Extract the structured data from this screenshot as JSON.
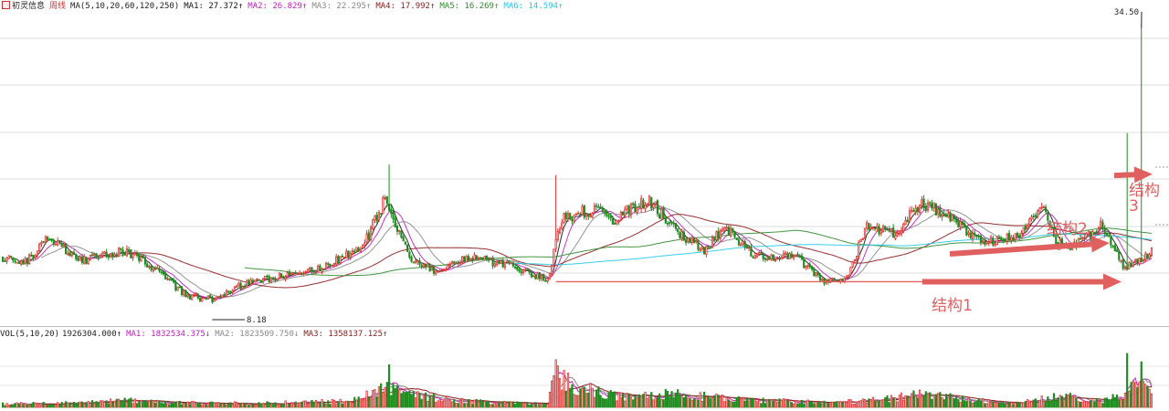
{
  "header": {
    "stock_name": "初灵信息",
    "period": "周线",
    "ma_label": "MA(5,10,20,60,120,250)",
    "ma_values": [
      {
        "label": "MA1:",
        "value": "27.372↑",
        "color": "#111111"
      },
      {
        "label": "MA2:",
        "value": "26.829↑",
        "color": "#c020c0"
      },
      {
        "label": "MA3:",
        "value": "22.295↑",
        "color": "#888888"
      },
      {
        "label": "MA4:",
        "value": "17.992↑",
        "color": "#8b1a1a"
      },
      {
        "label": "MA5:",
        "value": "16.269↑",
        "color": "#2e8b2e"
      },
      {
        "label": "MA6:",
        "value": "14.594↑",
        "color": "#22c8e8"
      }
    ]
  },
  "volume_header": {
    "label": "VOL(5,10,20)",
    "value": "1926304.000↑",
    "ma_values": [
      {
        "label": "MA1:",
        "value": "1832534.375↓",
        "color": "#c020c0"
      },
      {
        "label": "MA2:",
        "value": "1823509.750↓",
        "color": "#888888"
      },
      {
        "label": "MA3:",
        "value": "1358137.125↑",
        "color": "#8b1a1a"
      }
    ]
  },
  "annotations": {
    "structure1": "结构1",
    "structure2": "结构2",
    "structure3_line1": "结构",
    "structure3_line2": "3"
  },
  "chart_data": {
    "type": "candlestick",
    "title": "初灵信息 周线",
    "high_label": "34.50",
    "low_label": "8.18",
    "price_range": [
      6.5,
      36
    ],
    "volume_range": [
      0,
      2700000
    ],
    "colors": {
      "up": "#e03030",
      "down": "#1e8c1e",
      "arrow": "#e06060"
    },
    "price_path": [
      [
        0,
        12.6
      ],
      [
        10,
        11.9
      ],
      [
        22,
        14.5
      ],
      [
        40,
        12.3
      ],
      [
        60,
        13.3
      ],
      [
        75,
        11.5
      ],
      [
        90,
        9.0
      ],
      [
        103,
        8.6
      ],
      [
        115,
        9.8
      ],
      [
        140,
        11.0
      ],
      [
        160,
        11.8
      ],
      [
        178,
        14.0
      ],
      [
        188,
        18.2
      ],
      [
        200,
        12.8
      ],
      [
        213,
        11.3
      ],
      [
        230,
        12.7
      ],
      [
        255,
        11.5
      ],
      [
        268,
        10.5
      ],
      [
        275,
        16.4
      ],
      [
        290,
        17.2
      ],
      [
        300,
        16.3
      ],
      [
        318,
        18.1
      ],
      [
        332,
        15.0
      ],
      [
        345,
        13.4
      ],
      [
        355,
        15.4
      ],
      [
        370,
        12.8
      ],
      [
        390,
        12.6
      ],
      [
        405,
        10.2
      ],
      [
        415,
        10.8
      ],
      [
        425,
        15.5
      ],
      [
        438,
        14.8
      ],
      [
        452,
        17.8
      ],
      [
        463,
        16.8
      ],
      [
        481,
        14.2
      ],
      [
        500,
        14.6
      ],
      [
        511,
        18.0
      ],
      [
        518,
        14.0
      ],
      [
        528,
        13.8
      ],
      [
        541,
        15.8
      ],
      [
        552,
        11.5
      ],
      [
        565,
        13.2
      ]
    ],
    "volume_path": [
      [
        0,
        130000
      ],
      [
        30,
        160000
      ],
      [
        60,
        280000
      ],
      [
        90,
        170000
      ],
      [
        120,
        150000
      ],
      [
        150,
        210000
      ],
      [
        170,
        230000
      ],
      [
        180,
        500000
      ],
      [
        190,
        820000
      ],
      [
        200,
        500000
      ],
      [
        220,
        280000
      ],
      [
        240,
        200000
      ],
      [
        260,
        140000
      ],
      [
        268,
        120000
      ],
      [
        272,
        1450000
      ],
      [
        276,
        1080000
      ],
      [
        285,
        750000
      ],
      [
        300,
        450000
      ],
      [
        320,
        420000
      ],
      [
        332,
        570000
      ],
      [
        345,
        420000
      ],
      [
        370,
        280000
      ],
      [
        390,
        230000
      ],
      [
        405,
        170000
      ],
      [
        420,
        230000
      ],
      [
        440,
        380000
      ],
      [
        455,
        520000
      ],
      [
        470,
        330000
      ],
      [
        500,
        180000
      ],
      [
        520,
        450000
      ],
      [
        540,
        220000
      ],
      [
        552,
        550000
      ],
      [
        557,
        1050000
      ],
      [
        563,
        600000
      ],
      [
        565,
        850000
      ]
    ],
    "n_weeks": 566,
    "highlight_weeks": [
      {
        "week": 190,
        "high": 21.5,
        "volume": 1700000
      },
      {
        "week": 272,
        "high": 20.5,
        "volume": 1900000
      },
      {
        "week": 553,
        "high": 24.5,
        "volume": 2150000
      },
      {
        "week": 560,
        "high": 34.5,
        "volume": 1820000
      }
    ],
    "ma_periods": [
      5,
      10,
      20,
      60,
      120,
      250
    ],
    "vol_ma_periods": [
      5,
      10,
      20
    ],
    "structures": [
      {
        "name": "结构1",
        "level": 10.3
      },
      {
        "name": "结构2",
        "level": 11.7
      },
      {
        "name": "结构3",
        "level": 20.5
      }
    ]
  }
}
